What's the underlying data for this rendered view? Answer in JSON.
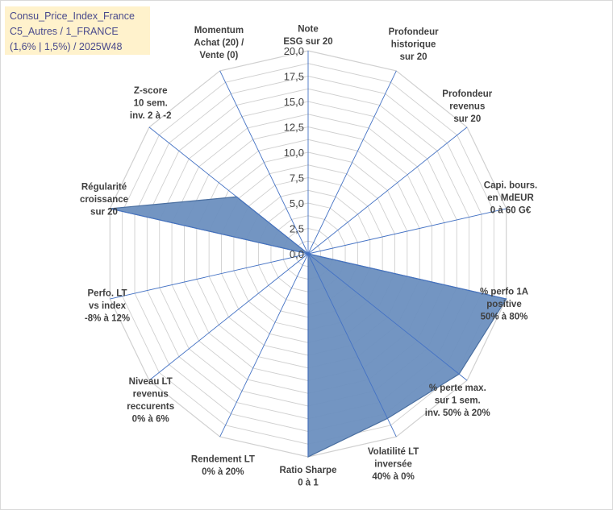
{
  "chart_data": {
    "type": "radar",
    "title_lines": [
      "Consu_Price_Index_France",
      "C5_Autres / 1_FRANCE",
      "(1,6% | 1,5%) / 2025W48"
    ],
    "rlim": [
      0,
      20
    ],
    "tick_values": [
      0,
      2.5,
      5,
      7.5,
      10,
      12.5,
      15,
      17.5,
      20
    ],
    "tick_labels": [
      "0,0",
      "2,5",
      "5,0",
      "7,5",
      "10,0",
      "12,5",
      "15,0",
      "17,5",
      "20,0"
    ],
    "axes": [
      {
        "lines": [
          "Note",
          "ESG sur 20"
        ]
      },
      {
        "lines": [
          "Profondeur",
          "historique",
          "sur 20"
        ]
      },
      {
        "lines": [
          "Profondeur",
          "revenus",
          "sur 20"
        ]
      },
      {
        "lines": [
          "Capi. bours.",
          "en MdEUR",
          "0 à 60 G€"
        ]
      },
      {
        "lines": [
          "% perfo 1A",
          "positive",
          "50% à 80%"
        ]
      },
      {
        "lines": [
          "% perte max.",
          "sur 1 sem.",
          "inv. 50% à 20%"
        ]
      },
      {
        "lines": [
          "Volatilité LT",
          "inversée",
          "40% à 0%"
        ]
      },
      {
        "lines": [
          "Ratio Sharpe",
          "0 à 1"
        ]
      },
      {
        "lines": [
          "Rendement LT",
          "0% à 20%"
        ]
      },
      {
        "lines": [
          "Niveau LT",
          "revenus",
          "reccurents",
          "0% à 6%"
        ]
      },
      {
        "lines": [
          "Perfo. LT",
          "vs index",
          "-8% à 12%"
        ]
      },
      {
        "lines": [
          "Régularité",
          "croissance",
          "sur 20"
        ]
      },
      {
        "lines": [
          "Z-score",
          "10 sem.",
          "inv. 2 à -2"
        ]
      },
      {
        "lines": [
          "Momentum",
          "Achat (20) /",
          "Vente (0)"
        ]
      }
    ],
    "series": [
      {
        "name": "Consu_Price_Index_France",
        "values": [
          0,
          0,
          0,
          0,
          20,
          19,
          18,
          20,
          0,
          0,
          0,
          20,
          9,
          0
        ]
      }
    ],
    "colors": {
      "fill": "#6b8fbf",
      "outline": "#4a6fa0",
      "grid": "#d0d0d0",
      "spoke": "#4472c4",
      "title_bg": "#fff2cc"
    }
  }
}
